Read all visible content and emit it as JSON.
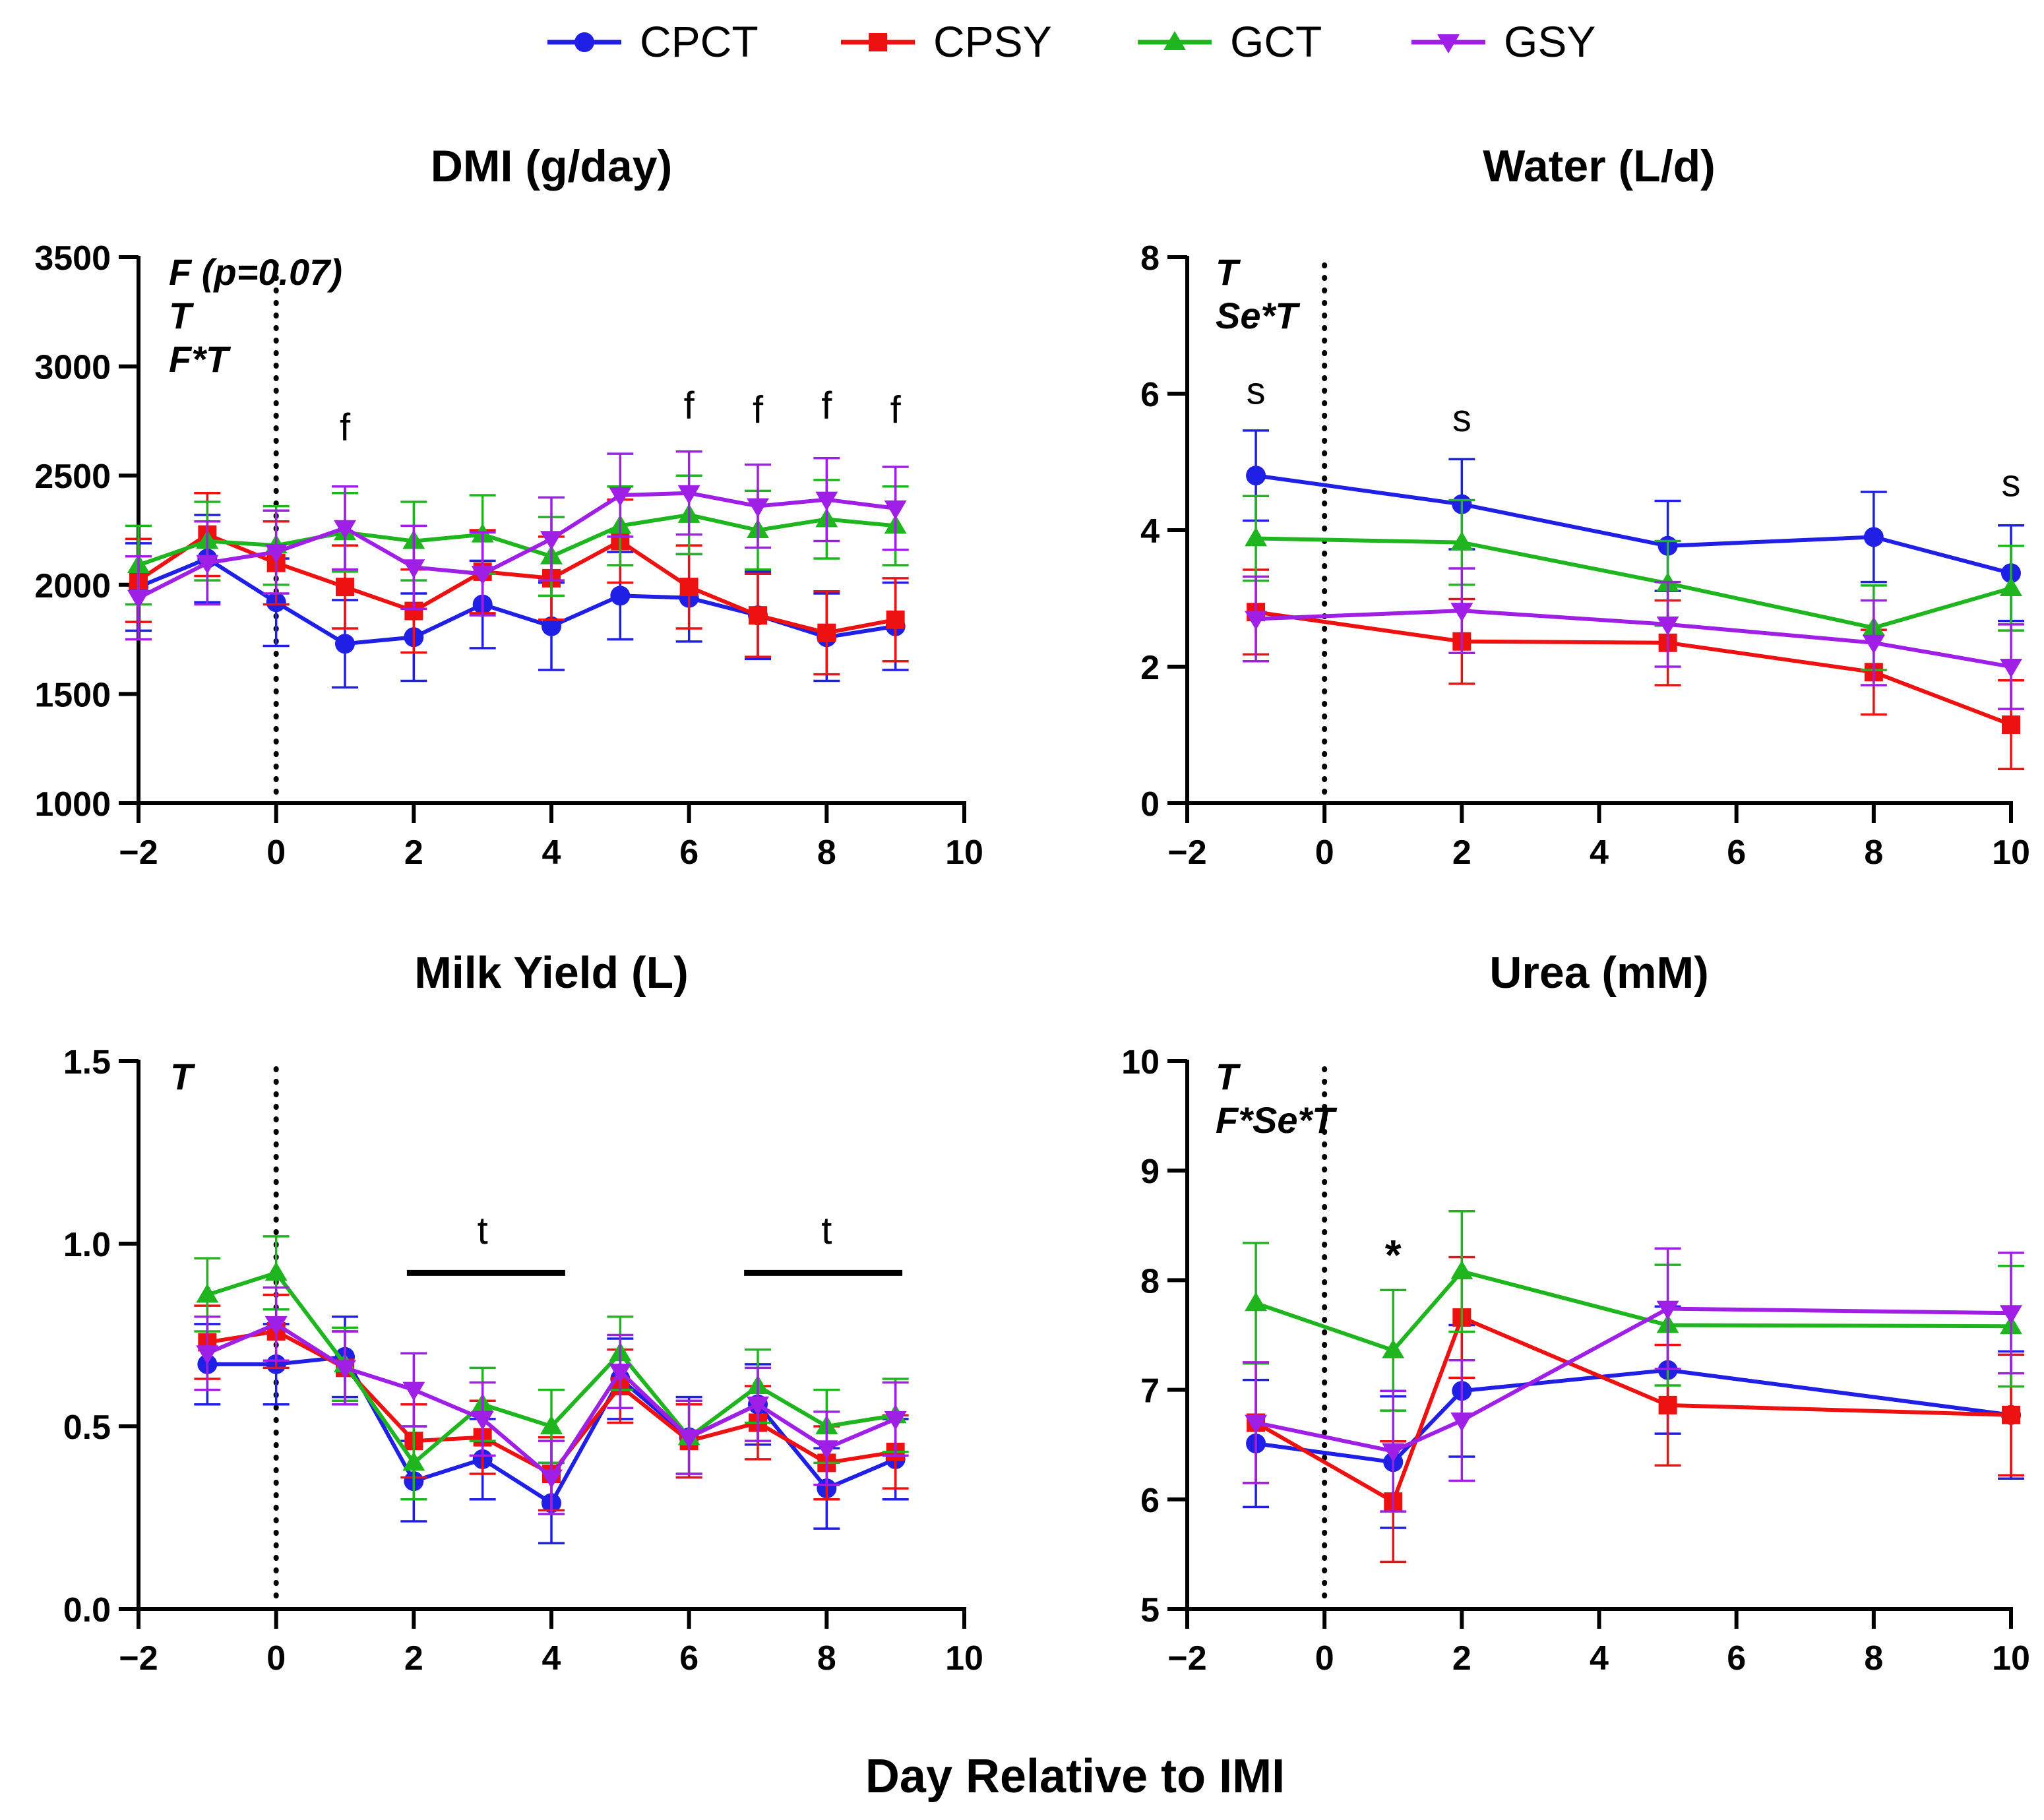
{
  "legend": [
    {
      "name": "CPCT",
      "color": "#1f1fe6",
      "marker": "circle"
    },
    {
      "name": "CPSY",
      "color": "#ee1111",
      "marker": "square"
    },
    {
      "name": "GCT",
      "color": "#1fb51f",
      "marker": "triangle-up"
    },
    {
      "name": "GSY",
      "color": "#a01fe6",
      "marker": "triangle-down"
    }
  ],
  "xlabel_common": "Day Relative to IMI",
  "chart_data": [
    {
      "type": "line",
      "title": "DMI (g/day)",
      "xlabel": "",
      "ylabel": "",
      "xlim": [
        -2,
        10
      ],
      "ylim": [
        1000,
        3500
      ],
      "xticks": [
        -2,
        0,
        2,
        4,
        6,
        8,
        10
      ],
      "xtick_labels": [
        "−2",
        "0",
        "2",
        "4",
        "6",
        "8",
        "10"
      ],
      "yticks": [
        1000,
        1500,
        2000,
        2500,
        3000,
        3500
      ],
      "ytick_labels": [
        "1000",
        "1500",
        "2000",
        "2500",
        "3000",
        "3500"
      ],
      "vline_x": 0,
      "annotations_bold": [
        "F (p=0.07)",
        "T",
        "F*T"
      ],
      "sig_marks": [
        {
          "x": 1,
          "y": 2660,
          "text": "f"
        },
        {
          "x": 6,
          "y": 2760,
          "text": "f"
        },
        {
          "x": 7,
          "y": 2740,
          "text": "f"
        },
        {
          "x": 8,
          "y": 2760,
          "text": "f"
        },
        {
          "x": 9,
          "y": 2740,
          "text": "f"
        }
      ],
      "bars": [],
      "series": [
        {
          "name": "CPCT",
          "x": [
            -2,
            -1,
            0,
            1,
            2,
            3,
            4,
            5,
            6,
            7,
            8,
            9
          ],
          "values": [
            1990,
            2120,
            1920,
            1730,
            1760,
            1910,
            1810,
            1950,
            1940,
            1860,
            1760,
            1810
          ],
          "err": [
            200,
            200,
            200,
            200,
            200,
            200,
            200,
            200,
            200,
            200,
            200,
            200
          ]
        },
        {
          "name": "CPSY",
          "x": [
            -2,
            -1,
            0,
            1,
            2,
            3,
            4,
            5,
            6,
            7,
            8,
            9
          ],
          "values": [
            2020,
            2230,
            2100,
            1990,
            1880,
            2060,
            2030,
            2200,
            1990,
            1860,
            1780,
            1840
          ],
          "err": [
            190,
            190,
            190,
            190,
            190,
            190,
            190,
            190,
            190,
            190,
            190,
            190
          ]
        },
        {
          "name": "GCT",
          "x": [
            -2,
            -1,
            0,
            1,
            2,
            3,
            4,
            5,
            6,
            7,
            8,
            9
          ],
          "values": [
            2090,
            2200,
            2180,
            2240,
            2200,
            2230,
            2130,
            2270,
            2320,
            2250,
            2300,
            2270
          ],
          "err": [
            180,
            180,
            180,
            180,
            180,
            180,
            180,
            180,
            180,
            180,
            180,
            180
          ]
        },
        {
          "name": "GSY",
          "x": [
            -2,
            -1,
            0,
            1,
            2,
            3,
            4,
            5,
            6,
            7,
            8,
            9
          ],
          "values": [
            1940,
            2100,
            2150,
            2260,
            2080,
            2050,
            2210,
            2410,
            2420,
            2360,
            2390,
            2350
          ],
          "err": [
            190,
            190,
            190,
            190,
            190,
            190,
            190,
            190,
            190,
            190,
            190,
            190
          ]
        }
      ]
    },
    {
      "type": "line",
      "title": "Water (L/d)",
      "xlabel": "",
      "ylabel": "",
      "xlim": [
        -2,
        10
      ],
      "ylim": [
        0,
        8
      ],
      "xticks": [
        -2,
        0,
        2,
        4,
        6,
        8,
        10
      ],
      "xtick_labels": [
        "−2",
        "0",
        "2",
        "4",
        "6",
        "8",
        "10"
      ],
      "yticks": [
        0,
        2,
        4,
        6,
        8
      ],
      "ytick_labels": [
        "0",
        "2",
        "4",
        "6",
        "8"
      ],
      "vline_x": 0,
      "annotations_bold": [
        "T",
        "Se*T"
      ],
      "sig_marks": [
        {
          "x": -1,
          "y": 5.85,
          "text": "s"
        },
        {
          "x": 2,
          "y": 5.45,
          "text": "s"
        },
        {
          "x": 10,
          "y": 4.5,
          "text": "s"
        }
      ],
      "bars": [],
      "series": [
        {
          "name": "CPCT",
          "x": [
            -1,
            2,
            5,
            8,
            10
          ],
          "values": [
            4.8,
            4.38,
            3.77,
            3.9,
            3.37
          ],
          "err": [
            0.66,
            0.66,
            0.66,
            0.66,
            0.7
          ]
        },
        {
          "name": "CPSY",
          "x": [
            -1,
            2,
            5,
            8,
            10
          ],
          "values": [
            2.8,
            2.37,
            2.35,
            1.92,
            1.15
          ],
          "err": [
            0.62,
            0.62,
            0.62,
            0.62,
            0.65
          ]
        },
        {
          "name": "GCT",
          "x": [
            -1,
            2,
            5,
            8,
            10
          ],
          "values": [
            3.88,
            3.82,
            3.22,
            2.57,
            3.15
          ],
          "err": [
            0.62,
            0.62,
            0.62,
            0.62,
            0.62
          ]
        },
        {
          "name": "GSY",
          "x": [
            -1,
            2,
            5,
            8,
            10
          ],
          "values": [
            2.7,
            2.82,
            2.62,
            2.35,
            2.0
          ],
          "err": [
            0.62,
            0.62,
            0.62,
            0.62,
            0.62
          ]
        }
      ]
    },
    {
      "type": "line",
      "title": "Milk Yield (L)",
      "xlabel": "",
      "ylabel": "",
      "xlim": [
        -2,
        10
      ],
      "ylim": [
        0,
        1.5
      ],
      "xticks": [
        -2,
        0,
        2,
        4,
        6,
        8,
        10
      ],
      "xtick_labels": [
        "−2",
        "0",
        "2",
        "4",
        "6",
        "8",
        "10"
      ],
      "yticks": [
        0,
        0.5,
        1.0,
        1.5
      ],
      "ytick_labels": [
        "0.0",
        "0.5",
        "1.0",
        "1.5"
      ],
      "vline_x": 0,
      "annotations_bold": [
        "T"
      ],
      "sig_marks": [
        {
          "x": 3,
          "y": 1.0,
          "text": "t"
        },
        {
          "x": 8,
          "y": 1.0,
          "text": "t"
        }
      ],
      "bars": [
        {
          "x1": 1.9,
          "x2": 4.2,
          "y": 0.92
        },
        {
          "x1": 6.8,
          "x2": 9.1,
          "y": 0.92
        }
      ],
      "series": [
        {
          "name": "CPCT",
          "x": [
            -1,
            0,
            1,
            2,
            3,
            4,
            5,
            6,
            7,
            8,
            9
          ],
          "values": [
            0.67,
            0.67,
            0.69,
            0.35,
            0.41,
            0.29,
            0.63,
            0.47,
            0.56,
            0.33,
            0.41
          ],
          "err": [
            0.11,
            0.11,
            0.11,
            0.11,
            0.11,
            0.11,
            0.11,
            0.11,
            0.11,
            0.11,
            0.11
          ]
        },
        {
          "name": "CPSY",
          "x": [
            -1,
            0,
            1,
            2,
            3,
            4,
            5,
            6,
            7,
            8,
            9
          ],
          "values": [
            0.73,
            0.76,
            0.66,
            0.46,
            0.47,
            0.37,
            0.61,
            0.46,
            0.51,
            0.4,
            0.43
          ],
          "err": [
            0.1,
            0.1,
            0.1,
            0.1,
            0.1,
            0.1,
            0.1,
            0.1,
            0.1,
            0.1,
            0.1
          ]
        },
        {
          "name": "GCT",
          "x": [
            -1,
            0,
            1,
            2,
            3,
            4,
            5,
            6,
            7,
            8,
            9
          ],
          "values": [
            0.86,
            0.92,
            0.67,
            0.4,
            0.56,
            0.5,
            0.7,
            0.47,
            0.61,
            0.5,
            0.53
          ],
          "err": [
            0.1,
            0.1,
            0.1,
            0.1,
            0.1,
            0.1,
            0.1,
            0.1,
            0.1,
            0.1,
            0.1
          ]
        },
        {
          "name": "GSY",
          "x": [
            -1,
            0,
            1,
            2,
            3,
            4,
            5,
            6,
            7,
            8,
            9
          ],
          "values": [
            0.7,
            0.78,
            0.66,
            0.6,
            0.52,
            0.36,
            0.65,
            0.47,
            0.56,
            0.44,
            0.52
          ],
          "err": [
            0.1,
            0.1,
            0.1,
            0.1,
            0.1,
            0.1,
            0.1,
            0.1,
            0.1,
            0.1,
            0.1
          ]
        }
      ]
    },
    {
      "type": "line",
      "title": "Urea (mM)",
      "xlabel": "",
      "ylabel": "",
      "xlim": [
        -2,
        10
      ],
      "ylim": [
        5,
        10
      ],
      "xticks": [
        -2,
        0,
        2,
        4,
        6,
        8,
        10
      ],
      "xtick_labels": [
        "−2",
        "0",
        "2",
        "4",
        "6",
        "8",
        "10"
      ],
      "yticks": [
        5,
        6,
        7,
        8,
        9,
        10
      ],
      "ytick_labels": [
        "5",
        "6",
        "7",
        "8",
        "9",
        "10"
      ],
      "vline_x": 0,
      "annotations_bold": [
        "T",
        "F*Se*T"
      ],
      "sig_marks": [
        {
          "x": 1,
          "y": 8.1,
          "text": "*"
        }
      ],
      "bars": [],
      "series": [
        {
          "name": "CPCT",
          "x": [
            -1,
            1,
            2,
            5,
            10
          ],
          "values": [
            6.51,
            6.34,
            6.99,
            7.18,
            6.77
          ],
          "err": [
            0.58,
            0.6,
            0.6,
            0.58,
            0.58
          ]
        },
        {
          "name": "CPSY",
          "x": [
            -1,
            1,
            2,
            5,
            10
          ],
          "values": [
            6.7,
            5.98,
            7.66,
            6.86,
            6.77
          ],
          "err": [
            0.55,
            0.55,
            0.55,
            0.55,
            0.55
          ]
        },
        {
          "name": "GCT",
          "x": [
            -1,
            1,
            2,
            5,
            10
          ],
          "values": [
            7.79,
            7.36,
            8.08,
            7.59,
            7.58
          ],
          "err": [
            0.55,
            0.55,
            0.55,
            0.55,
            0.55
          ]
        },
        {
          "name": "GSY",
          "x": [
            -1,
            1,
            2,
            5,
            10
          ],
          "values": [
            6.7,
            6.44,
            6.72,
            7.74,
            7.7
          ],
          "err": [
            0.55,
            0.55,
            0.55,
            0.55,
            0.55
          ]
        }
      ]
    }
  ]
}
